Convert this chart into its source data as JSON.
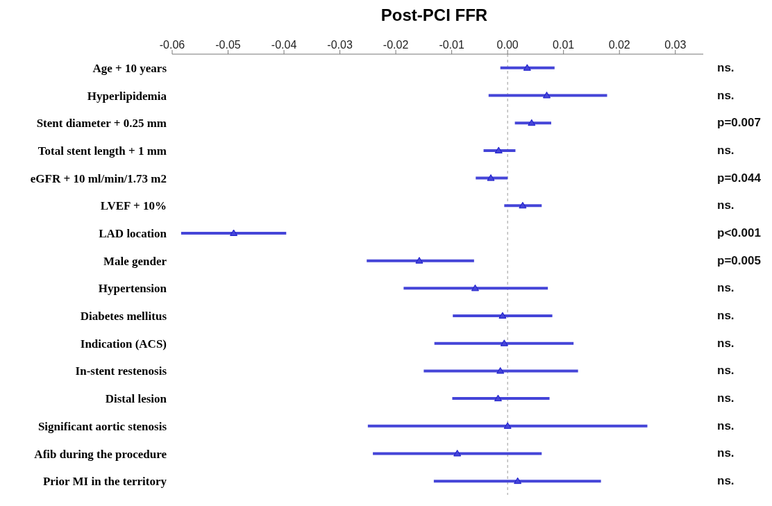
{
  "chart_data": {
    "type": "scatter",
    "orientation": "horizontal",
    "title": "Post-PCI FFR",
    "categories": [
      "Age + 10 years",
      "Hyperlipidemia",
      "Stent diameter + 0.25 mm",
      "Total stent length + 1 mm",
      "eGFR + 10 ml/min/1.73 m2",
      "LVEF + 10%",
      "LAD location",
      "Male gender",
      "Hypertension",
      "Diabetes mellitus",
      "Indication (ACS)",
      "In-stent restenosis",
      "Distal lesion",
      "Significant aortic stenosis",
      "Afib during the procedure",
      "Prior MI in the territory"
    ],
    "series": [
      {
        "color": "#4545d8",
        "values": [
          0.0035,
          0.007,
          0.0043,
          -0.0016,
          -0.003,
          0.0027,
          -0.049,
          -0.0158,
          -0.0058,
          -0.0009,
          -0.0006,
          -0.0013,
          -0.0017,
          0,
          -0.009,
          0.0018
        ],
        "errors": [
          [
            -0.0013,
            0.0084
          ],
          [
            -0.0034,
            0.0178
          ],
          [
            0.0013,
            0.0078
          ],
          [
            -0.0043,
            0.0014
          ],
          [
            -0.0057,
            0
          ],
          [
            -0.0006,
            0.0061
          ],
          [
            -0.0584,
            -0.0396
          ],
          [
            -0.0252,
            -0.006
          ],
          [
            -0.0186,
            0.0072
          ],
          [
            -0.0098,
            0.008
          ],
          [
            -0.0131,
            0.0118
          ],
          [
            -0.015,
            0.0126
          ],
          [
            -0.0099,
            0.0075
          ],
          [
            -0.025,
            0.025
          ],
          [
            -0.0241,
            0.0061
          ],
          [
            -0.0132,
            0.0167
          ]
        ]
      }
    ],
    "xlim": [
      -0.06,
      0.035
    ],
    "xticks": [
      -0.06,
      -0.05,
      -0.04,
      -0.03,
      -0.02,
      -0.01,
      {
        "value": 0,
        "label": "0.00"
      },
      0.01,
      0.02,
      0.03
    ],
    "marker": "triangle",
    "grid": false,
    "legend": false,
    "ref_lines": [
      {
        "axis": "x",
        "value": 0,
        "color": "#999999",
        "line_style": "dashed"
      }
    ],
    "annotations": [
      "ns.",
      "ns.",
      "p=0.007",
      "ns.",
      "p=0.044",
      "ns.",
      "p<0.001",
      "p=0.005",
      "ns.",
      "ns.",
      "ns.",
      "ns.",
      "ns.",
      "ns.",
      "ns.",
      "ns."
    ]
  }
}
